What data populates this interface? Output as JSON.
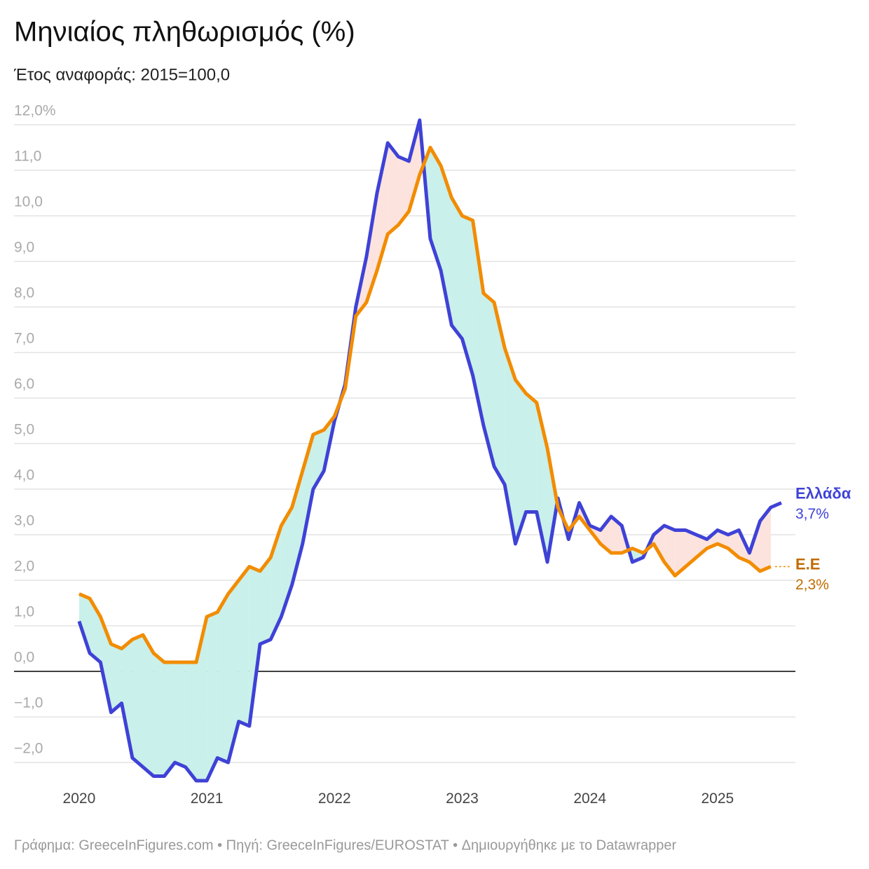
{
  "chart_data": {
    "type": "line",
    "title": "Μηνιαίος πληθωρισμός (%)",
    "subtitle": "Έτος αναφοράς: 2015=100,0",
    "source": "Γράφημα: GreeceInFigures.com • Πηγή: GreeceInFigures/EUROSTAT • Δημιουργήθηκε με το Datawrapper",
    "x": [
      2020,
      2020.083,
      2020.167,
      2020.25,
      2020.333,
      2020.417,
      2020.5,
      2020.583,
      2020.667,
      2020.75,
      2020.833,
      2020.917,
      2021,
      2021.083,
      2021.167,
      2021.25,
      2021.333,
      2021.417,
      2021.5,
      2021.583,
      2021.667,
      2021.75,
      2021.833,
      2021.917,
      2022,
      2022.083,
      2022.167,
      2022.25,
      2022.333,
      2022.417,
      2022.5,
      2022.583,
      2022.667,
      2022.75,
      2022.833,
      2022.917,
      2023,
      2023.083,
      2023.167,
      2023.25,
      2023.333,
      2023.417,
      2023.5,
      2023.583,
      2023.667,
      2023.75,
      2023.833,
      2023.917,
      2024,
      2024.083,
      2024.167,
      2024.25,
      2024.333,
      2024.417,
      2024.5,
      2024.583,
      2024.667,
      2024.75,
      2024.833,
      2024.917,
      2025,
      2025.083,
      2025.167,
      2025.25,
      2025.333,
      2025.417,
      2025.5
    ],
    "series": [
      {
        "name": "Ελλάδα",
        "color": "#3f42d6",
        "label_color": "#3f42d6",
        "values": [
          1.1,
          0.4,
          0.2,
          -0.9,
          -0.7,
          -1.9,
          -2.1,
          -2.3,
          -2.3,
          -2.0,
          -2.1,
          -2.4,
          -2.4,
          -1.9,
          -2.0,
          -1.1,
          -1.2,
          0.6,
          0.7,
          1.2,
          1.9,
          2.8,
          4.0,
          4.4,
          5.5,
          6.3,
          8.0,
          9.1,
          10.5,
          11.6,
          11.3,
          11.2,
          12.1,
          9.5,
          8.8,
          7.6,
          7.3,
          6.5,
          5.4,
          4.5,
          4.1,
          2.8,
          3.5,
          3.5,
          2.4,
          3.8,
          2.9,
          3.7,
          3.2,
          3.1,
          3.4,
          3.2,
          2.4,
          2.5,
          3.0,
          3.2,
          3.1,
          3.1,
          3.0,
          2.9,
          3.1,
          3.0,
          3.1,
          2.6,
          3.3,
          3.6,
          3.7
        ],
        "value_labels": [
          null,
          null,
          null,
          null,
          null,
          null,
          null,
          null,
          null,
          null,
          null,
          null,
          null,
          null,
          null,
          null,
          null,
          null,
          null,
          null,
          null,
          null,
          null,
          null,
          null,
          null,
          null,
          null,
          null,
          null,
          null,
          null,
          null,
          null,
          null,
          null,
          null,
          null,
          null,
          null,
          null,
          null,
          null,
          null,
          null,
          null,
          null,
          null,
          null,
          null,
          null,
          null,
          null,
          null,
          null,
          null,
          null,
          null,
          null,
          null,
          null,
          null,
          null,
          null,
          null,
          null,
          "3,7%"
        ]
      },
      {
        "name": "Ε.Ε",
        "color": "#f28c00",
        "label_color": "#c06c00",
        "values": [
          1.7,
          1.6,
          1.2,
          0.6,
          0.5,
          0.7,
          0.8,
          0.4,
          0.2,
          0.2,
          0.2,
          0.2,
          1.2,
          1.3,
          1.7,
          2.0,
          2.3,
          2.2,
          2.5,
          3.2,
          3.6,
          4.4,
          5.2,
          5.3,
          5.6,
          6.2,
          7.8,
          8.1,
          8.8,
          9.6,
          9.8,
          10.1,
          10.9,
          11.5,
          11.1,
          10.4,
          10.0,
          9.9,
          8.3,
          8.1,
          7.1,
          6.4,
          6.1,
          5.9,
          4.9,
          3.6,
          3.1,
          3.4,
          3.1,
          2.8,
          2.6,
          2.6,
          2.7,
          2.6,
          2.8,
          2.4,
          2.1,
          2.3,
          2.5,
          2.7,
          2.8,
          2.7,
          2.5,
          2.4,
          2.2,
          2.3,
          null
        ],
        "value_labels": [
          null,
          null,
          null,
          null,
          null,
          null,
          null,
          null,
          null,
          null,
          null,
          null,
          null,
          null,
          null,
          null,
          null,
          null,
          null,
          null,
          null,
          null,
          null,
          null,
          null,
          null,
          null,
          null,
          null,
          null,
          null,
          null,
          null,
          null,
          null,
          null,
          null,
          null,
          null,
          null,
          null,
          null,
          null,
          null,
          null,
          null,
          null,
          null,
          null,
          null,
          null,
          null,
          null,
          null,
          null,
          null,
          null,
          null,
          null,
          null,
          null,
          null,
          null,
          null,
          null,
          "2,3%",
          null
        ]
      }
    ],
    "fill_colors": [
      "#fde3dd",
      "#c9f0ea"
    ],
    "xlim": [
      2019.49,
      2025.61
    ],
    "xticks": [
      2020,
      2021,
      2022,
      2023,
      2024,
      2025
    ],
    "ylim": [
      -2.5,
      12.3
    ],
    "yticks": [
      {
        "value": 12,
        "label": "12,0%"
      },
      {
        "value": 11,
        "label": "11,0"
      },
      {
        "value": 10,
        "label": "10,0"
      },
      {
        "value": 9,
        "label": "9,0"
      },
      {
        "value": 8,
        "label": "8,0"
      },
      {
        "value": 7,
        "label": "7,0"
      },
      {
        "value": 6,
        "label": "6,0"
      },
      {
        "value": 5,
        "label": "5,0"
      },
      {
        "value": 4,
        "label": "4,0"
      },
      {
        "value": 3,
        "label": "3,0"
      },
      {
        "value": 2,
        "label": "2,0"
      },
      {
        "value": 1,
        "label": "1,0"
      },
      {
        "value": 0,
        "label": "0,0"
      },
      {
        "value": -1,
        "label": "−1,0"
      },
      {
        "value": -2,
        "label": "−2,0"
      }
    ],
    "grid": true
  }
}
